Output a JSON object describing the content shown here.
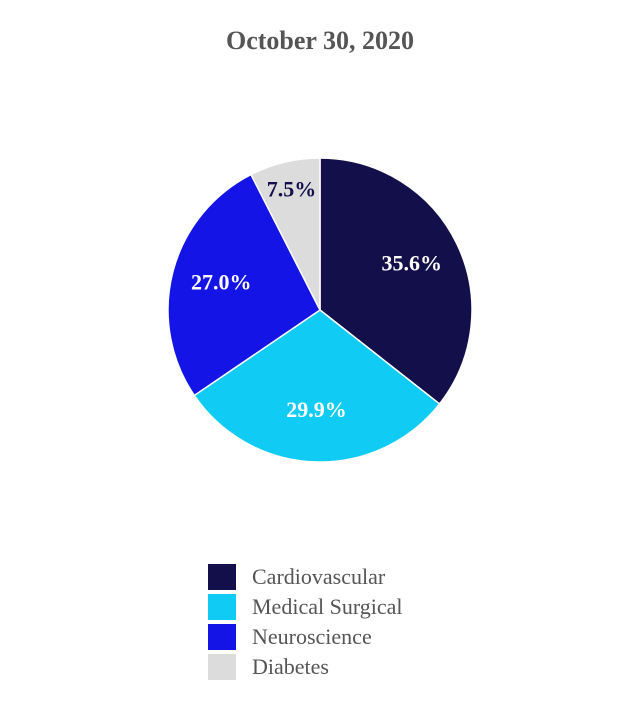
{
  "chart_data": {
    "type": "pie",
    "title": "October 30, 2020",
    "categories": [
      "Cardiovascular",
      "Medical Surgical",
      "Neuroscience",
      "Diabetes"
    ],
    "values": [
      35.6,
      29.9,
      27.0,
      7.5
    ],
    "value_labels": [
      "35.6%",
      "29.9%",
      "27.0%",
      "7.5%"
    ],
    "colors": [
      "#130f4a",
      "#10cbf3",
      "#1414e6",
      "#dcdcdc"
    ],
    "label_colors": [
      "#ffffff",
      "#ffffff",
      "#ffffff",
      "#130f4a"
    ],
    "start": "12 o'clock",
    "direction": "clockwise",
    "legend_position": "bottom"
  }
}
